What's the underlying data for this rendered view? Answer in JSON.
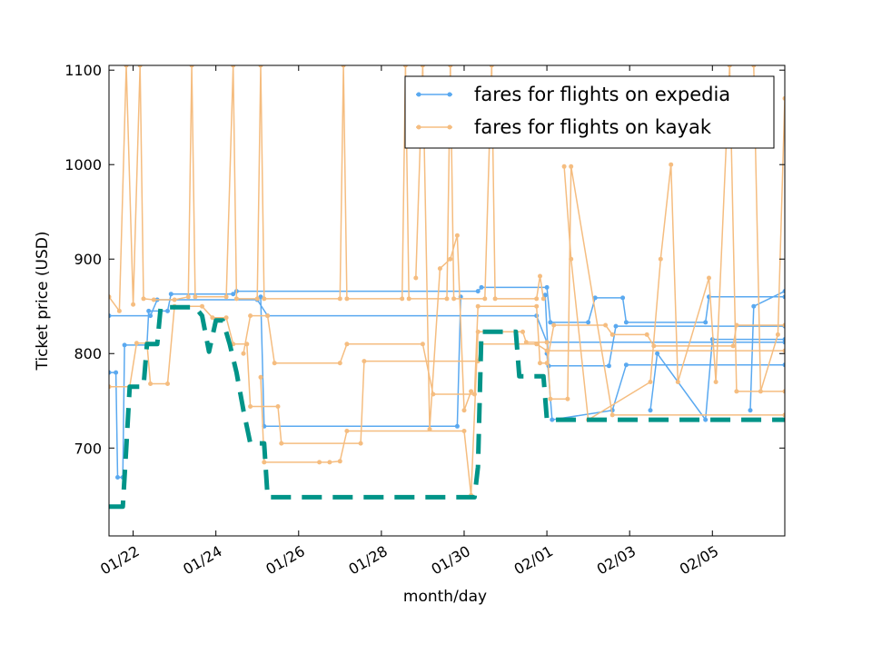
{
  "chart_data": {
    "type": "line",
    "title": "",
    "xlabel": "month/day",
    "ylabel": "Ticket price (USD)",
    "xlim": [
      "2015-01-21T10:00",
      "2015-02-06T18:00"
    ],
    "ylim": [
      607,
      1105
    ],
    "x_ticks": [
      {
        "date": "2015-01-22",
        "label": "01/22"
      },
      {
        "date": "2015-01-24",
        "label": "01/24"
      },
      {
        "date": "2015-01-26",
        "label": "01/26"
      },
      {
        "date": "2015-01-28",
        "label": "01/28"
      },
      {
        "date": "2015-01-30",
        "label": "01/30"
      },
      {
        "date": "2015-02-01",
        "label": "02/01"
      },
      {
        "date": "2015-02-03",
        "label": "02/03"
      },
      {
        "date": "2015-02-05",
        "label": "02/05"
      }
    ],
    "y_ticks": [
      700,
      800,
      900,
      1000,
      1100
    ],
    "grid": false,
    "legend": {
      "placement": "top-right",
      "entries": [
        "fares for flights on expedia",
        "fares for flights on kayak"
      ]
    },
    "series": [
      {
        "name": "fares for flights on expedia",
        "color": "#5aa9f0",
        "style": "thin-line-with-dots",
        "lines": [
          [
            [
              "2015-01-21T10:00",
              780
            ],
            [
              "2015-01-21T14:00",
              780
            ],
            [
              "2015-01-21T15:00",
              669
            ],
            [
              "2015-01-21T18:00",
              669
            ],
            [
              "2015-01-21T19:00",
              809
            ],
            [
              "2015-01-22T08:00",
              809
            ],
            [
              "2015-01-22T09:00",
              845
            ],
            [
              "2015-01-22T20:00",
              845
            ],
            [
              "2015-01-22T22:00",
              863
            ],
            [
              "2015-01-24T10:00",
              863
            ],
            [
              "2015-01-24T12:00",
              866
            ],
            [
              "2015-01-30T08:00",
              866
            ],
            [
              "2015-01-30T10:00",
              870
            ],
            [
              "2015-02-01T00:00",
              870
            ],
            [
              "2015-02-01T02:00",
              833
            ],
            [
              "2015-02-02T00:00",
              833
            ],
            [
              "2015-02-02T04:00",
              859
            ],
            [
              "2015-02-02T20:00",
              859
            ],
            [
              "2015-02-02T22:00",
              833
            ],
            [
              "2015-02-04T20:00",
              833
            ],
            [
              "2015-02-04T22:00",
              860
            ],
            [
              "2015-02-06T18:00",
              860
            ]
          ],
          [
            [
              "2015-01-21T10:00",
              840
            ],
            [
              "2015-01-22T10:00",
              840
            ],
            [
              "2015-01-22T14:00",
              857
            ],
            [
              "2015-01-25T00:00",
              857
            ],
            [
              "2015-01-25T06:00",
              840
            ],
            [
              "2015-01-31T18:00",
              840
            ],
            [
              "2015-02-01T00:00",
              812
            ],
            [
              "2015-02-06T18:00",
              812
            ]
          ],
          [
            [
              "2015-01-25T02:00",
              860
            ],
            [
              "2015-01-25T04:00",
              723
            ],
            [
              "2015-01-29T20:00",
              723
            ],
            [
              "2015-01-29T22:00",
              860
            ]
          ],
          [
            [
              "2015-01-31T23:00",
              862
            ],
            [
              "2015-02-01T01:00",
              787
            ],
            [
              "2015-02-02T12:00",
              787
            ],
            [
              "2015-02-02T16:00",
              829
            ],
            [
              "2015-02-06T18:00",
              829
            ]
          ],
          [
            [
              "2015-02-01T00:00",
              800
            ],
            [
              "2015-02-01T03:00",
              730
            ],
            [
              "2015-02-02T14:00",
              740
            ],
            [
              "2015-02-02T22:00",
              788
            ],
            [
              "2015-02-06T18:00",
              788
            ]
          ],
          [
            [
              "2015-02-03T12:00",
              740
            ],
            [
              "2015-02-03T16:00",
              800
            ],
            [
              "2015-02-04T20:00",
              730
            ],
            [
              "2015-02-05T00:00",
              815
            ],
            [
              "2015-02-06T18:00",
              815
            ]
          ],
          [
            [
              "2015-02-05T22:00",
              740
            ],
            [
              "2015-02-06T00:00",
              850
            ],
            [
              "2015-02-06T18:00",
              866
            ]
          ]
        ]
      },
      {
        "name": "fares for flights on kayak",
        "color": "#f5bd80",
        "style": "thin-line-with-dots",
        "lines": [
          [
            [
              "2015-01-21T10:00",
              860
            ],
            [
              "2015-01-21T16:00",
              845
            ],
            [
              "2015-01-21T20:00",
              1105
            ],
            [
              "2015-01-22T00:00",
              852
            ],
            [
              "2015-01-22T04:00",
              1105
            ],
            [
              "2015-01-22T06:00",
              858
            ],
            [
              "2015-01-22T12:00",
              857
            ],
            [
              "2015-01-23T00:00",
              857
            ],
            [
              "2015-01-23T08:00",
              860
            ],
            [
              "2015-01-23T10:00",
              1105
            ],
            [
              "2015-01-23T12:00",
              860
            ],
            [
              "2015-01-24T06:00",
              860
            ],
            [
              "2015-01-24T10:00",
              1105
            ],
            [
              "2015-01-24T12:00",
              858
            ],
            [
              "2015-01-25T00:00",
              858
            ],
            [
              "2015-01-25T02:00",
              1105
            ],
            [
              "2015-01-25T04:00",
              858
            ],
            [
              "2015-01-27T00:00",
              858
            ],
            [
              "2015-01-27T02:00",
              1105
            ],
            [
              "2015-01-27T04:00",
              858
            ],
            [
              "2015-01-28T12:00",
              858
            ],
            [
              "2015-01-28T14:00",
              1105
            ],
            [
              "2015-01-28T16:00",
              858
            ],
            [
              "2015-01-29T14:00",
              858
            ],
            [
              "2015-01-29T16:00",
              1105
            ],
            [
              "2015-01-29T18:00",
              858
            ],
            [
              "2015-01-30T12:00",
              858
            ],
            [
              "2015-01-30T16:00",
              1105
            ],
            [
              "2015-01-30T18:00",
              858
            ],
            [
              "2015-01-31T18:00",
              858
            ],
            [
              "2015-01-31T20:00",
              882
            ],
            [
              "2015-01-31T22:00",
              858
            ]
          ],
          [
            [
              "2015-01-21T10:00",
              765
            ],
            [
              "2015-01-21T22:00",
              765
            ],
            [
              "2015-01-22T02:00",
              811
            ],
            [
              "2015-01-22T08:00",
              811
            ],
            [
              "2015-01-22T10:00",
              768
            ],
            [
              "2015-01-22T20:00",
              768
            ],
            [
              "2015-01-23T00:00",
              850
            ],
            [
              "2015-01-23T16:00",
              850
            ],
            [
              "2015-01-23T22:00",
              838
            ],
            [
              "2015-01-24T06:00",
              838
            ],
            [
              "2015-01-24T10:00",
              810
            ],
            [
              "2015-01-24T18:00",
              810
            ],
            [
              "2015-01-24T20:00",
              744
            ],
            [
              "2015-01-25T12:00",
              744
            ],
            [
              "2015-01-25T14:00",
              705
            ],
            [
              "2015-01-27T12:00",
              705
            ],
            [
              "2015-01-27T14:00",
              792
            ],
            [
              "2015-01-30T08:00",
              792
            ],
            [
              "2015-01-30T10:00",
              810
            ],
            [
              "2015-01-31T18:00",
              810
            ],
            [
              "2015-02-01T00:00",
              803
            ],
            [
              "2015-02-06T18:00",
              803
            ]
          ],
          [
            [
              "2015-01-25T02:00",
              775
            ],
            [
              "2015-01-25T04:00",
              685
            ],
            [
              "2015-01-26T12:00",
              685
            ],
            [
              "2015-01-26T18:00",
              685
            ],
            [
              "2015-01-27T00:00",
              686
            ],
            [
              "2015-01-27T04:00",
              718
            ],
            [
              "2015-01-30T00:00",
              718
            ],
            [
              "2015-01-30T04:00",
              650
            ],
            [
              "2015-01-30T08:00",
              823
            ],
            [
              "2015-01-31T10:00",
              823
            ],
            [
              "2015-01-31T12:00",
              812
            ],
            [
              "2015-02-01T00:00",
              812
            ],
            [
              "2015-02-01T02:00",
              752
            ],
            [
              "2015-02-01T12:00",
              752
            ],
            [
              "2015-02-01T14:00",
              998
            ],
            [
              "2015-02-02T14:00",
              735
            ],
            [
              "2015-02-06T18:00",
              735
            ]
          ],
          [
            [
              "2015-01-24T16:00",
              800
            ],
            [
              "2015-01-24T20:00",
              840
            ],
            [
              "2015-01-25T06:00",
              840
            ],
            [
              "2015-01-25T10:00",
              790
            ],
            [
              "2015-01-27T00:00",
              790
            ],
            [
              "2015-01-27T04:00",
              810
            ],
            [
              "2015-01-29T00:00",
              810
            ],
            [
              "2015-01-29T06:00",
              757
            ],
            [
              "2015-01-30T06:00",
              757
            ],
            [
              "2015-01-30T08:00",
              850
            ],
            [
              "2015-01-31T18:00",
              850
            ],
            [
              "2015-01-31T20:00",
              790
            ],
            [
              "2015-02-01T00:00",
              790
            ],
            [
              "2015-02-01T04:00",
              830
            ],
            [
              "2015-02-02T10:00",
              830
            ],
            [
              "2015-02-02T14:00",
              820
            ],
            [
              "2015-02-03T10:00",
              820
            ],
            [
              "2015-02-03T14:00",
              808
            ],
            [
              "2015-02-05T12:00",
              808
            ],
            [
              "2015-02-05T14:00",
              830
            ],
            [
              "2015-02-06T18:00",
              830
            ]
          ],
          [
            [
              "2015-02-01T10:00",
              998
            ],
            [
              "2015-02-01T14:00",
              900
            ],
            [
              "2015-02-02T00:00",
              730
            ],
            [
              "2015-02-03T12:00",
              770
            ],
            [
              "2015-02-03T18:00",
              900
            ],
            [
              "2015-02-04T00:00",
              1000
            ],
            [
              "2015-02-04T04:00",
              770
            ],
            [
              "2015-02-04T22:00",
              880
            ],
            [
              "2015-02-05T02:00",
              770
            ],
            [
              "2015-02-05T10:00",
              1105
            ],
            [
              "2015-02-05T14:00",
              760
            ],
            [
              "2015-02-06T18:00",
              760
            ]
          ],
          [
            [
              "2015-01-28T20:00",
              880
            ],
            [
              "2015-01-29T00:00",
              1105
            ],
            [
              "2015-01-29T04:00",
              720
            ],
            [
              "2015-01-29T10:00",
              890
            ],
            [
              "2015-01-29T16:00",
              900
            ],
            [
              "2015-01-29T20:00",
              925
            ],
            [
              "2015-01-30T00:00",
              740
            ],
            [
              "2015-01-30T04:00",
              760
            ]
          ],
          [
            [
              "2015-02-06T00:00",
              1105
            ],
            [
              "2015-02-06T04:00",
              760
            ],
            [
              "2015-02-06T14:00",
              820
            ],
            [
              "2015-02-06T18:00",
              1070
            ]
          ]
        ]
      },
      {
        "name": "",
        "color": "#009488",
        "style": "thick-dashed-step",
        "lines": [
          [
            [
              "2015-01-21T10:00",
              638
            ],
            [
              "2015-01-21T18:00",
              638
            ],
            [
              "2015-01-21T20:00",
              700
            ],
            [
              "2015-01-21T22:00",
              765
            ],
            [
              "2015-01-22T06:00",
              765
            ],
            [
              "2015-01-22T08:00",
              810
            ],
            [
              "2015-01-22T14:00",
              810
            ],
            [
              "2015-01-22T16:00",
              849
            ],
            [
              "2015-01-23T12:00",
              849
            ],
            [
              "2015-01-23T16:00",
              840
            ],
            [
              "2015-01-23T20:00",
              802
            ],
            [
              "2015-01-24T00:00",
              835
            ],
            [
              "2015-01-24T04:00",
              835
            ],
            [
              "2015-01-24T08:00",
              810
            ],
            [
              "2015-01-24T12:00",
              780
            ],
            [
              "2015-01-24T16:00",
              740
            ],
            [
              "2015-01-24T20:00",
              705
            ],
            [
              "2015-01-25T04:00",
              705
            ],
            [
              "2015-01-25T06:00",
              648
            ],
            [
              "2015-01-30T06:00",
              648
            ],
            [
              "2015-01-30T08:00",
              680
            ],
            [
              "2015-01-30T10:00",
              823
            ],
            [
              "2015-01-31T06:00",
              823
            ],
            [
              "2015-01-31T08:00",
              776
            ],
            [
              "2015-01-31T22:00",
              776
            ],
            [
              "2015-02-01T00:00",
              730
            ],
            [
              "2015-02-06T18:00",
              730
            ]
          ]
        ]
      }
    ]
  }
}
